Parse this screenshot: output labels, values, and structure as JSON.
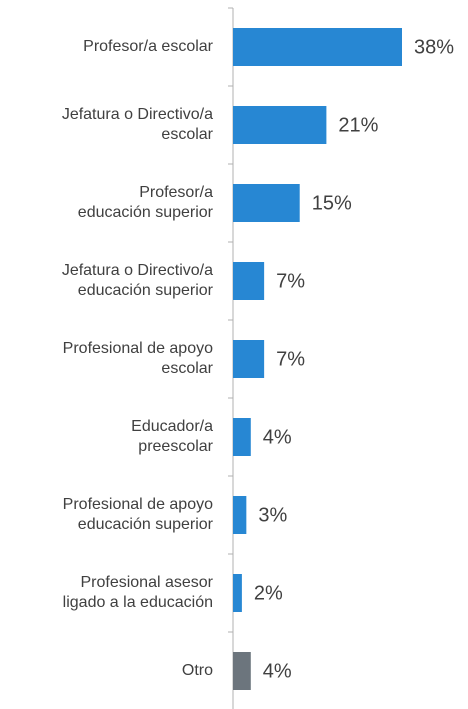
{
  "chart_data": {
    "type": "barh",
    "categories": [
      [
        "Profesor/a escolar"
      ],
      [
        "Jefatura o Directivo/a",
        "escolar"
      ],
      [
        "Profesor/a",
        "educación superior"
      ],
      [
        "Jefatura o Directivo/a",
        "educación superior"
      ],
      [
        "Profesional de apoyo",
        "escolar"
      ],
      [
        "Educador/a",
        "preescolar"
      ],
      [
        "Profesional de apoyo",
        "educación superior"
      ],
      [
        "Profesional asesor",
        "ligado a la educación"
      ],
      [
        "Otro"
      ]
    ],
    "values": [
      38,
      21,
      15,
      7,
      7,
      4,
      3,
      2,
      4
    ],
    "value_labels": [
      "38%",
      "21%",
      "15%",
      "7%",
      "7%",
      "4%",
      "3%",
      "2%",
      "4%"
    ],
    "colors": [
      "#2787d3",
      "#2787d3",
      "#2787d3",
      "#2787d3",
      "#2787d3",
      "#2787d3",
      "#2787d3",
      "#2787d3",
      "#6c757d"
    ]
  }
}
